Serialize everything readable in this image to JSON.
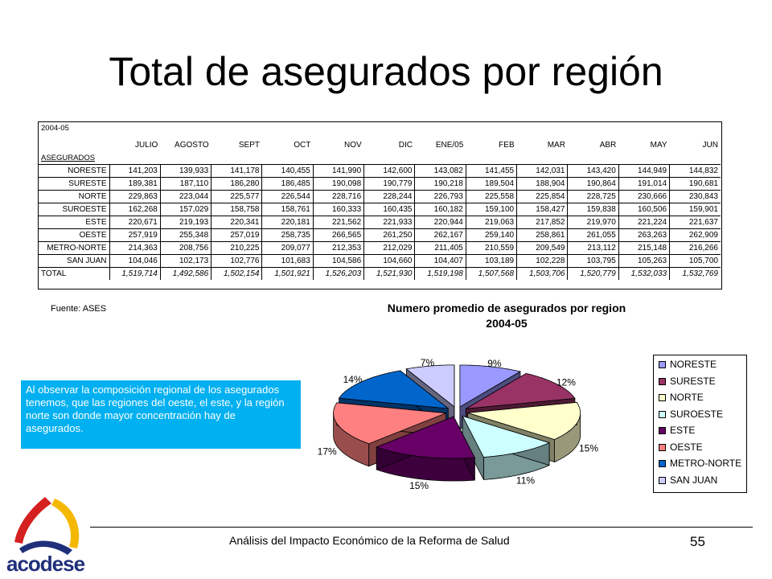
{
  "title": "Total de asegurados por región",
  "table": {
    "period_label": "2004-05",
    "group_label": "ASEGURADOS",
    "months": [
      "JULIO",
      "AGOSTO",
      "SEPT",
      "OCT",
      "NOV",
      "DIC",
      "ENE/05",
      "FEB",
      "MAR",
      "ABR",
      "MAY",
      "JUN"
    ],
    "rows": [
      {
        "region": "NORESTE",
        "values": [
          "141,203",
          "139,933",
          "141,178",
          "140,455",
          "141,990",
          "142,600",
          "143,082",
          "141,455",
          "142,031",
          "143,420",
          "144,949",
          "144,832"
        ]
      },
      {
        "region": "SURESTE",
        "values": [
          "189,381",
          "187,110",
          "186,280",
          "186,485",
          "190,098",
          "190,779",
          "190,218",
          "189,504",
          "188,904",
          "190,864",
          "191,014",
          "190,681"
        ]
      },
      {
        "region": "NORTE",
        "values": [
          "229,863",
          "223,044",
          "225,577",
          "226,544",
          "228,716",
          "228,244",
          "226,793",
          "225,558",
          "225,854",
          "228,725",
          "230,666",
          "230,843"
        ]
      },
      {
        "region": "SUROESTE",
        "values": [
          "162,268",
          "157,029",
          "158,758",
          "158,761",
          "160,333",
          "160,435",
          "160,182",
          "159,100",
          "158,427",
          "159,838",
          "160,506",
          "159,901"
        ]
      },
      {
        "region": "ESTE",
        "values": [
          "220,671",
          "219,193",
          "220,341",
          "220,181",
          "221,562",
          "221,933",
          "220,944",
          "219,063",
          "217,852",
          "219,970",
          "221,224",
          "221,637"
        ]
      },
      {
        "region": "OESTE",
        "values": [
          "257,919",
          "255,348",
          "257,019",
          "258,735",
          "266,565",
          "261,250",
          "262,167",
          "259,140",
          "258,861",
          "261,055",
          "263,263",
          "262,909"
        ]
      },
      {
        "region": "METRO-NORTE",
        "values": [
          "214,363",
          "208,756",
          "210,225",
          "209,077",
          "212,353",
          "212,029",
          "211,405",
          "210,559",
          "209,549",
          "213,112",
          "215,148",
          "216,266"
        ]
      },
      {
        "region": "SAN JUAN",
        "values": [
          "104,046",
          "102,173",
          "102,776",
          "101,683",
          "104,586",
          "104,660",
          "104,407",
          "103,189",
          "102,228",
          "103,795",
          "105,263",
          "105,700"
        ]
      }
    ],
    "total_label": "TOTAL",
    "totals": [
      "1,519,714",
      "1,492,586",
      "1,502,154",
      "1,501,921",
      "1,526,203",
      "1,521,930",
      "1,519,198",
      "1,507,568",
      "1,503,706",
      "1,520,779",
      "1,532,033",
      "1,532,769"
    ]
  },
  "source": "Fuente: ASES",
  "note": "Al observar la composición regional de los asegurados tenemos, que las regiones del oeste, el este, y la región norte son donde mayor concentración hay de asegurados.",
  "chart_data": {
    "type": "pie",
    "title": "Numero promedio de asegurados por region",
    "subtitle": "2004-05",
    "legend_position": "right",
    "slices": [
      {
        "name": "NORESTE",
        "value": 9,
        "label": "9%",
        "color": "#9999ff"
      },
      {
        "name": "SURESTE",
        "value": 12,
        "label": "12%",
        "color": "#993366"
      },
      {
        "name": "NORTE",
        "value": 15,
        "label": "15%",
        "color": "#ffffcc"
      },
      {
        "name": "SUROESTE",
        "value": 11,
        "label": "11%",
        "color": "#ccffff"
      },
      {
        "name": "ESTE",
        "value": 15,
        "label": "15%",
        "color": "#660066"
      },
      {
        "name": "OESTE",
        "value": 17,
        "label": "17%",
        "color": "#ff8080"
      },
      {
        "name": "METRO-NORTE",
        "value": 14,
        "label": "14%",
        "color": "#0066cc"
      },
      {
        "name": "SAN JUAN",
        "value": 7,
        "label": "7%",
        "color": "#ccccff"
      }
    ]
  },
  "footer": {
    "text": "Análisis del Impacto Económico de la Reforma de Salud",
    "page": "55"
  },
  "logo": {
    "text": "acodese",
    "colors": [
      "#f5b800",
      "#d42020",
      "#1f2f7a"
    ]
  }
}
